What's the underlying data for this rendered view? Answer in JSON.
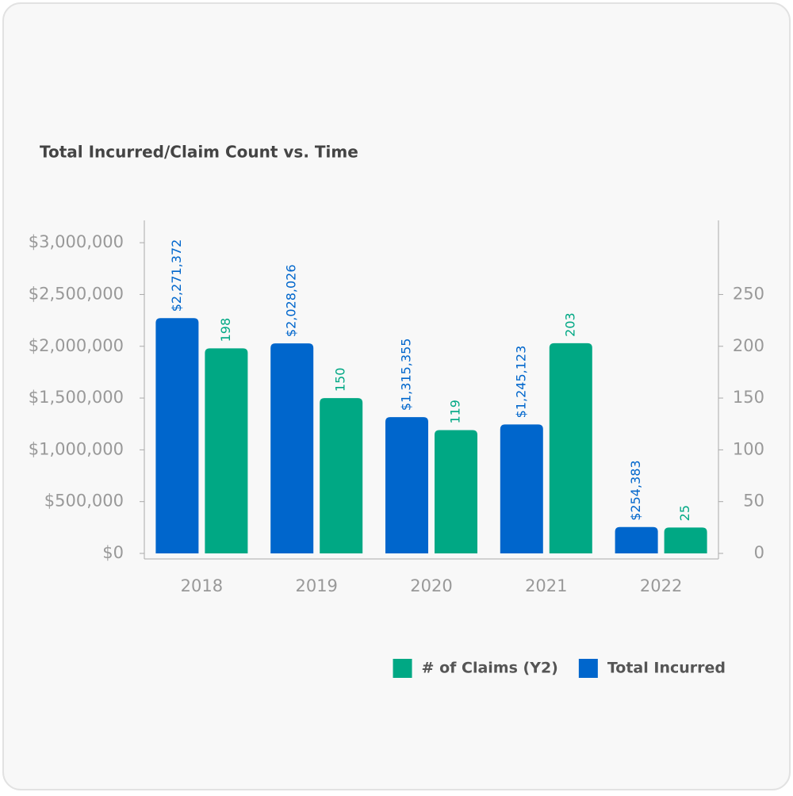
{
  "chart_data": {
    "type": "bar",
    "title": "Total Incurred/Claim Count vs. Time",
    "categories": [
      "2018",
      "2019",
      "2020",
      "2021",
      "2022"
    ],
    "series": [
      {
        "name": "Total Incurred",
        "color": "#0066cc",
        "values": [
          2271372,
          2028026,
          1315355,
          1245123,
          254383
        ],
        "value_labels": [
          "$2,271,372",
          "$2,028,026",
          "$1,315,355",
          "$1,245,123",
          "$254,383"
        ]
      },
      {
        "name": "# of Claims (Y2)",
        "color": "#00a884",
        "axis": "y2",
        "values": [
          198,
          150,
          119,
          203,
          25
        ]
      }
    ],
    "ylim": [
      0,
      3200000
    ],
    "yticks": [
      {
        "value": 0,
        "label": "$0"
      },
      {
        "value": 500000,
        "label": "$500,000"
      },
      {
        "value": 1000000,
        "label": "$1,000,000"
      },
      {
        "value": 1500000,
        "label": "$1,500,000"
      },
      {
        "value": 2000000,
        "label": "$2,000,000"
      },
      {
        "value": 2500000,
        "label": "$2,500,000"
      },
      {
        "value": 3000000,
        "label": "$3,000,000"
      }
    ],
    "y2lim": [
      0,
      320
    ],
    "y2ticks": [
      0,
      50,
      100,
      150,
      200,
      250
    ],
    "grid": false
  }
}
